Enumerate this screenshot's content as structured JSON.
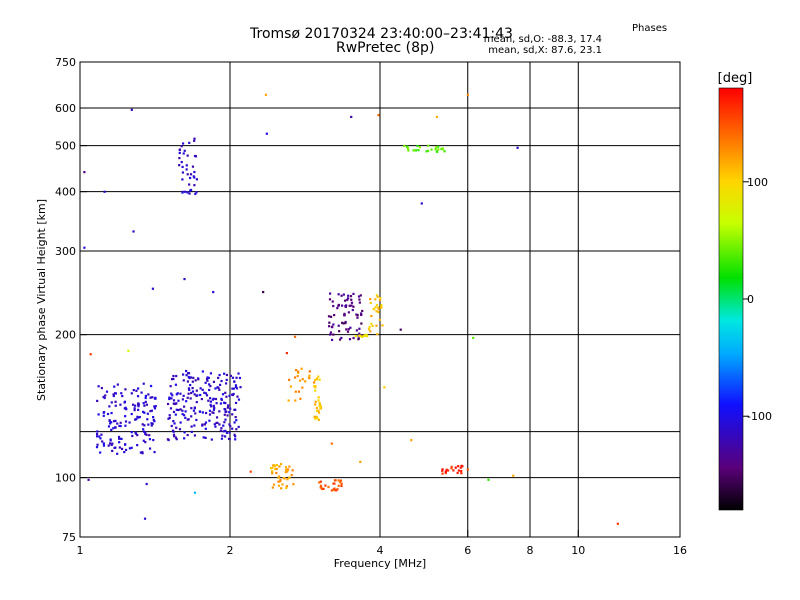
{
  "chart_data": {
    "type": "scatter",
    "title": "Tromsø 20170324 23:40:00–23:41:43",
    "subtitle": "RwPretec (8p)",
    "xlabel": "Frequency [MHz]",
    "ylabel": "Stationary phase Virtual Height [km]",
    "x_scale": "log",
    "y_scale": "log",
    "xlim": [
      1,
      16
    ],
    "ylim": [
      75,
      750
    ],
    "x_ticks": [
      1,
      2,
      4,
      6,
      8,
      10,
      16
    ],
    "x_tick_labels": [
      "1",
      "2",
      "4",
      "6",
      "8",
      "10",
      "16"
    ],
    "y_ticks": [
      75,
      100,
      200,
      300,
      400,
      500,
      600,
      750
    ],
    "y_tick_labels": [
      "75",
      "100",
      "200",
      "300",
      "400",
      "500",
      "600",
      "750"
    ],
    "y_grid": [
      100,
      125,
      200,
      300,
      400,
      500,
      600
    ],
    "x_grid": [
      2,
      4,
      6,
      8,
      10
    ],
    "grid": true,
    "colorbar": {
      "label": "[deg]",
      "range": [
        -180,
        180
      ],
      "ticks": [
        100,
        0,
        -100
      ],
      "tick_labels": [
        "100",
        "0",
        "-100"
      ]
    },
    "stats": {
      "title": "Phases",
      "line_o": "mean, sd,O: -88.3, 17.4",
      "line_x": "mean, sd,X:  87.6, 23.1"
    },
    "clusters": [
      {
        "x": [
          1.08,
          1.42
        ],
        "y": [
          112,
          158
        ],
        "phase": -110,
        "n": 160
      },
      {
        "x": [
          1.5,
          2.1
        ],
        "y": [
          120,
          168
        ],
        "phase": -112,
        "n": 230
      },
      {
        "x": [
          1.58,
          1.72
        ],
        "y": [
          395,
          520
        ],
        "phase": -112,
        "n": 40
      },
      {
        "x": [
          2.4,
          2.68
        ],
        "y": [
          95,
          107
        ],
        "phase": 118,
        "n": 40
      },
      {
        "x": [
          2.62,
          2.95
        ],
        "y": [
          145,
          170
        ],
        "phase": 125,
        "n": 22
      },
      {
        "x": [
          2.95,
          3.05
        ],
        "y": [
          130,
          165
        ],
        "phase": 108,
        "n": 30
      },
      {
        "x": [
          3.0,
          3.35
        ],
        "y": [
          94,
          99
        ],
        "phase": 150,
        "n": 25
      },
      {
        "x": [
          3.15,
          3.7
        ],
        "y": [
          195,
          245
        ],
        "phase": -140,
        "n": 75
      },
      {
        "x": [
          3.55,
          3.8
        ],
        "y": [
          198,
          200
        ],
        "phase": 95,
        "n": 14
      },
      {
        "x": [
          3.8,
          4.05
        ],
        "y": [
          200,
          245
        ],
        "phase": 108,
        "n": 28
      },
      {
        "x": [
          4.45,
          5.5
        ],
        "y": [
          485,
          500
        ],
        "phase": 40,
        "n": 25
      },
      {
        "x": [
          5.3,
          6.0
        ],
        "y": [
          102,
          106
        ],
        "phase": 165,
        "n": 20
      }
    ],
    "points": [
      {
        "x": 1.27,
        "y": 595,
        "phase": -115
      },
      {
        "x": 1.12,
        "y": 400,
        "phase": -110
      },
      {
        "x": 1.02,
        "y": 440,
        "phase": -140
      },
      {
        "x": 1.02,
        "y": 305,
        "phase": -105
      },
      {
        "x": 1.28,
        "y": 330,
        "phase": -120
      },
      {
        "x": 1.4,
        "y": 250,
        "phase": -110
      },
      {
        "x": 1.62,
        "y": 262,
        "phase": -115
      },
      {
        "x": 1.85,
        "y": 246,
        "phase": -105
      },
      {
        "x": 2.33,
        "y": 246,
        "phase": -160
      },
      {
        "x": 2.37,
        "y": 530,
        "phase": -100
      },
      {
        "x": 2.36,
        "y": 640,
        "phase": 120
      },
      {
        "x": 1.05,
        "y": 182,
        "phase": 160
      },
      {
        "x": 1.25,
        "y": 185,
        "phase": 65
      },
      {
        "x": 1.04,
        "y": 99,
        "phase": -130
      },
      {
        "x": 1.36,
        "y": 97,
        "phase": -110
      },
      {
        "x": 1.7,
        "y": 93,
        "phase": -40
      },
      {
        "x": 1.35,
        "y": 82,
        "phase": -105
      },
      {
        "x": 2.2,
        "y": 103,
        "phase": 155
      },
      {
        "x": 3.5,
        "y": 575,
        "phase": -125
      },
      {
        "x": 3.97,
        "y": 580,
        "phase": 140
      },
      {
        "x": 4.85,
        "y": 378,
        "phase": -110
      },
      {
        "x": 5.2,
        "y": 575,
        "phase": 115
      },
      {
        "x": 6.0,
        "y": 640,
        "phase": 130
      },
      {
        "x": 7.55,
        "y": 495,
        "phase": -110
      },
      {
        "x": 4.4,
        "y": 205,
        "phase": -150
      },
      {
        "x": 4.62,
        "y": 120,
        "phase": 120
      },
      {
        "x": 4.08,
        "y": 155,
        "phase": 105
      },
      {
        "x": 3.2,
        "y": 118,
        "phase": 140
      },
      {
        "x": 3.65,
        "y": 108,
        "phase": 120
      },
      {
        "x": 6.15,
        "y": 197,
        "phase": 40
      },
      {
        "x": 6.6,
        "y": 99,
        "phase": 30
      },
      {
        "x": 7.4,
        "y": 101,
        "phase": 115
      },
      {
        "x": 12.0,
        "y": 80,
        "phase": 160
      },
      {
        "x": 2.7,
        "y": 198,
        "phase": 140
      },
      {
        "x": 2.6,
        "y": 183,
        "phase": 165
      }
    ]
  }
}
